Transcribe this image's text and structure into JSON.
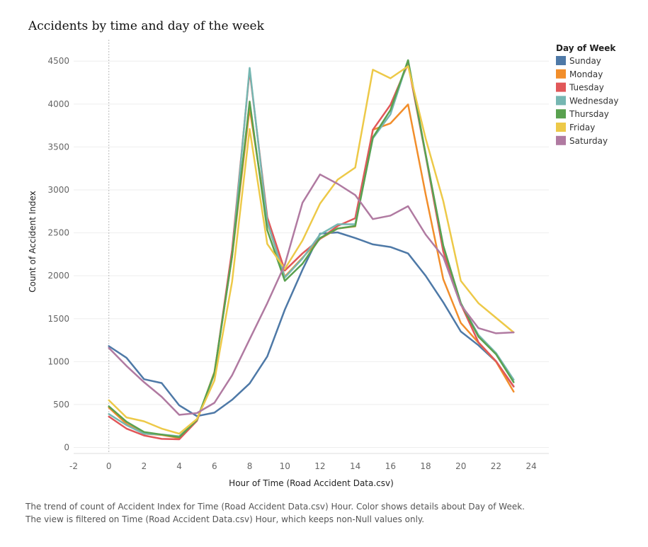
{
  "caption": {
    "line1": "The trend of count of Accident Index for Time (Road Accident Data.csv) Hour.  Color shows details about Day of Week.",
    "line2": "The view is filtered on Time (Road Accident Data.csv) Hour, which keeps non-Null values only."
  },
  "chart_data": {
    "type": "line",
    "title": "Accidents by time and day of the week",
    "xlabel": "Hour of Time (Road Accident Data.csv)",
    "ylabel": "Count of Accident Index",
    "xlim": [
      -2,
      25
    ],
    "ylim": [
      -70,
      4700
    ],
    "xticks": [
      -2,
      0,
      2,
      4,
      6,
      8,
      10,
      12,
      14,
      16,
      18,
      20,
      22,
      24
    ],
    "yticks": [
      0,
      500,
      1000,
      1500,
      2000,
      2500,
      3000,
      3500,
      4000,
      4500
    ],
    "grid": "horizontal",
    "reference_line_x": 0,
    "legend": {
      "title": "Day of Week",
      "position": "right"
    },
    "x": [
      0,
      1,
      2,
      3,
      4,
      5,
      6,
      7,
      8,
      9,
      10,
      11,
      12,
      13,
      14,
      15,
      16,
      17,
      18,
      19,
      20,
      21,
      22,
      23
    ],
    "series": [
      {
        "name": "Sunday",
        "color": "#4e79a7",
        "values": [
          1180,
          1045,
          795,
          750,
          490,
          365,
          405,
          555,
          745,
          1060,
          1605,
          2070,
          2490,
          2505,
          2440,
          2365,
          2335,
          2260,
          2000,
          1690,
          1350,
          1190,
          1000,
          710
        ]
      },
      {
        "name": "Monday",
        "color": "#f28e2b",
        "values": [
          465,
          275,
          160,
          145,
          110,
          310,
          880,
          2220,
          3950,
          2620,
          1990,
          2210,
          2430,
          2550,
          2575,
          3700,
          3775,
          3995,
          2950,
          1960,
          1450,
          1220,
          1000,
          650
        ]
      },
      {
        "name": "Tuesday",
        "color": "#e15759",
        "values": [
          360,
          220,
          140,
          100,
          95,
          310,
          860,
          2300,
          4390,
          2680,
          2060,
          2260,
          2430,
          2580,
          2670,
          3700,
          3990,
          4470,
          3400,
          2280,
          1670,
          1225,
          1005,
          710
        ]
      },
      {
        "name": "Wednesday",
        "color": "#76b7b2",
        "values": [
          390,
          260,
          160,
          150,
          130,
          320,
          860,
          2230,
          4420,
          2630,
          1980,
          2200,
          2480,
          2600,
          2600,
          3600,
          3880,
          4510,
          3410,
          2350,
          1680,
          1310,
          1100,
          790
        ]
      },
      {
        "name": "Thursday",
        "color": "#59a14f",
        "values": [
          480,
          300,
          180,
          150,
          120,
          320,
          870,
          2230,
          4030,
          2530,
          1940,
          2140,
          2440,
          2550,
          2580,
          3610,
          3930,
          4510,
          3420,
          2350,
          1680,
          1290,
          1085,
          760
        ]
      },
      {
        "name": "Friday",
        "color": "#edc948",
        "values": [
          550,
          350,
          305,
          220,
          160,
          330,
          780,
          1930,
          3710,
          2370,
          2080,
          2410,
          2840,
          3120,
          3260,
          4400,
          4300,
          4440,
          3600,
          2870,
          1940,
          1680,
          1510,
          1340
        ]
      },
      {
        "name": "Saturday",
        "color": "#b07aa1",
        "values": [
          1160,
          950,
          760,
          590,
          380,
          400,
          520,
          840,
          1260,
          1680,
          2130,
          2850,
          3180,
          3070,
          2940,
          2660,
          2700,
          2810,
          2480,
          2220,
          1660,
          1390,
          1330,
          1340
        ]
      }
    ]
  }
}
